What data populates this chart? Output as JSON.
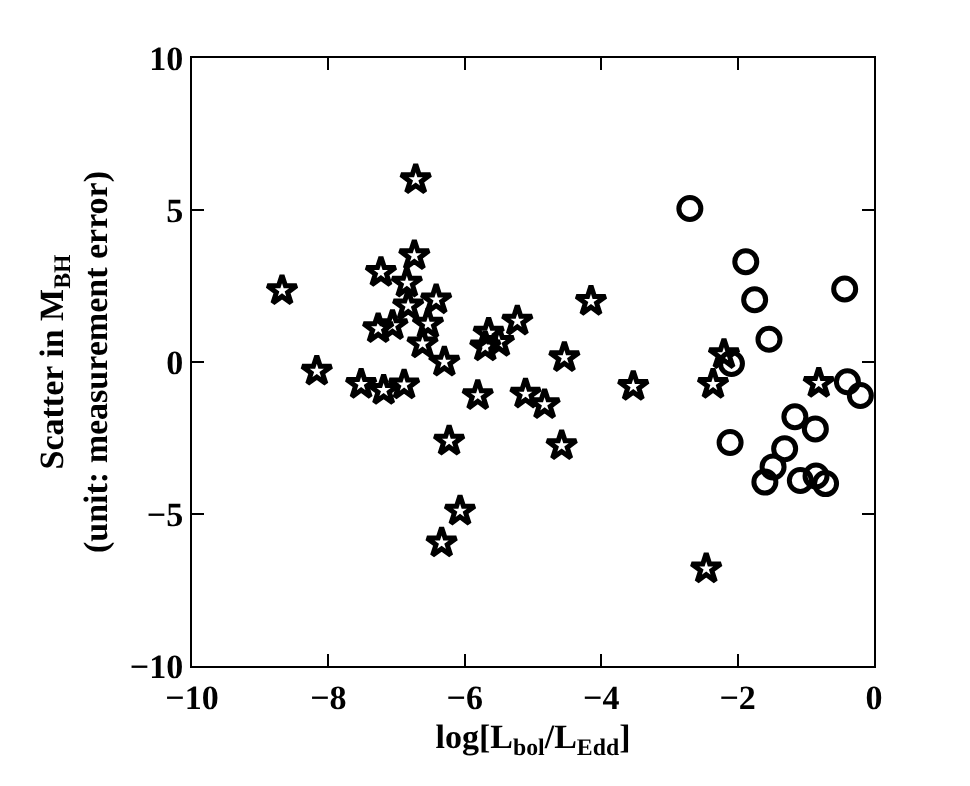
{
  "chart_data": {
    "type": "scatter",
    "xlabel": "log[L$_{bol}$/L$_{Edd}$]",
    "ylabel": "Scatter in M$_{BH}$\n(unit: measurement error)",
    "series": [
      {
        "color": "#000000",
        "marker": "star",
        "x": [
          -8.68,
          -8.17,
          -7.52,
          -7.19,
          -7.23,
          -7.27,
          -7.06,
          -6.89,
          -6.85,
          -6.83,
          -6.74,
          -6.72,
          -6.54,
          -6.62,
          -6.42,
          -6.4,
          -6.3,
          -6.27,
          -6.23,
          -6.07,
          -6.34,
          -5.81,
          -5.7,
          -5.65,
          -5.5,
          -5.23,
          -5.11,
          -4.83,
          -4.58,
          -4.54,
          -4.15,
          -3.53,
          -2.46,
          -2.36,
          -2.2,
          -0.81
        ],
        "values": [
          2.35,
          -0.3,
          -0.73,
          -0.93,
          2.95,
          1.1,
          1.2,
          -0.75,
          2.6,
          1.85,
          3.5,
          6.0,
          1.25,
          0.6,
          2.05,
          null,
          0.0,
          null,
          -2.6,
          -4.9,
          -5.95,
          -1.1,
          0.5,
          0.95,
          0.65,
          1.35,
          -1.05,
          -1.4,
          -2.75,
          0.15,
          2.0,
          -0.8,
          -6.8,
          -0.73,
          0.25,
          -0.7
        ]
      },
      {
        "color": "#000000",
        "marker": "circle",
        "x": [
          -2.7,
          -2.09,
          -2.11,
          -1.88,
          -1.75,
          -1.54,
          -1.6,
          -1.48,
          -1.31,
          -1.16,
          -1.08,
          -0.86,
          -0.85,
          -0.71,
          -0.43,
          -0.39,
          -0.2
        ],
        "values": [
          5.05,
          -0.05,
          -2.65,
          3.3,
          2.05,
          0.75,
          -3.95,
          -3.45,
          -2.85,
          -1.8,
          -3.9,
          -2.2,
          -3.75,
          -4.0,
          2.4,
          -0.65,
          -1.1
        ]
      }
    ],
    "xlim": [
      -10,
      0
    ],
    "xticks": [
      -10,
      -8,
      -6,
      -4,
      -2,
      0
    ],
    "ylim": [
      -10,
      10
    ],
    "yticks": [
      -10,
      -5,
      0,
      5,
      10
    ]
  }
}
